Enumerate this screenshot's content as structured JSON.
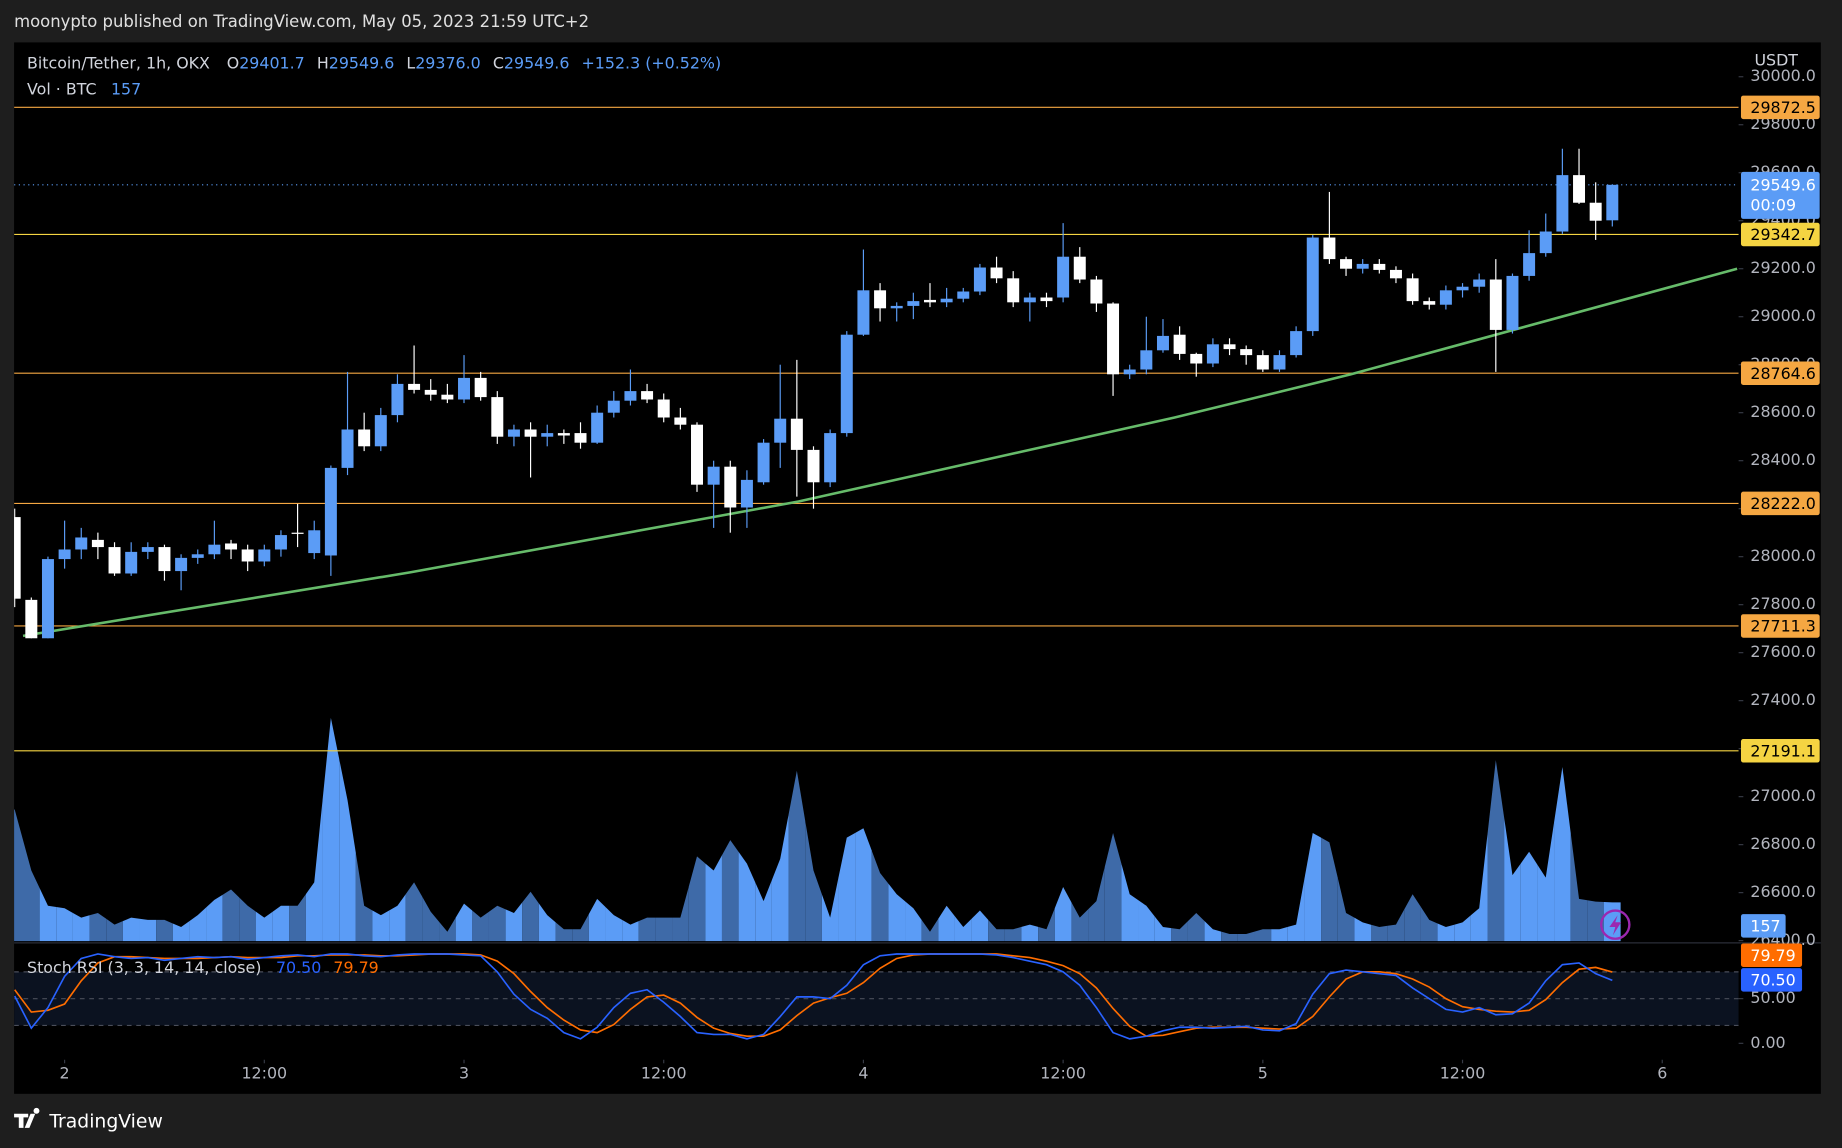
{
  "chart_data": {
    "type": "candlestick",
    "published": "moonypto published on TradingView.com, May 05, 2023 21:59 UTC+2",
    "title": "Bitcoin/Tether, 1h, OKX",
    "ohlc_labels": [
      "O",
      "H",
      "L",
      "C"
    ],
    "ohlc_value_labels": [
      "29401.7",
      "29549.6",
      "29376.0",
      "29549.6"
    ],
    "change_label": "+152.3 (+0.52%)",
    "volume_label": "Vol · BTC",
    "currency": "USDT",
    "countdown": "00:09",
    "footer": "TradingView",
    "up_color": "#5b9cf6",
    "down_color": "#ffffff",
    "volume_up_color": "#5b9cf6",
    "volume_down_color": "#3e6aa8",
    "grid": false,
    "xlim": [
      -3.035,
      100.59
    ],
    "ylim": [
      26398,
      30143
    ],
    "xticks": [
      {
        "value": 0,
        "label": "2"
      },
      {
        "value": 12,
        "label": "12:00"
      },
      {
        "value": 24,
        "label": "3"
      },
      {
        "value": 36,
        "label": "12:00"
      },
      {
        "value": 48,
        "label": "4"
      },
      {
        "value": 60,
        "label": "12:00"
      },
      {
        "value": 72,
        "label": "5"
      },
      {
        "value": 84,
        "label": "12:00"
      },
      {
        "value": 96,
        "label": "6"
      }
    ],
    "yticks": [
      {
        "value": 26400,
        "label": "26400.0"
      },
      {
        "value": 26600,
        "label": "26600.0"
      },
      {
        "value": 26800,
        "label": "26800.0"
      },
      {
        "value": 27000,
        "label": "27000.0"
      },
      {
        "value": 27200,
        "label": "27200.0"
      },
      {
        "value": 27400,
        "label": "27400.0"
      },
      {
        "value": 27600,
        "label": "27600.0"
      },
      {
        "value": 27800,
        "label": "27800.0"
      },
      {
        "value": 28000,
        "label": "28000.0"
      },
      {
        "value": 28200,
        "label": "28200.0"
      },
      {
        "value": 28400,
        "label": "28400.0"
      },
      {
        "value": 28600,
        "label": "28600.0"
      },
      {
        "value": 28800,
        "label": "28800.0"
      },
      {
        "value": 29000,
        "label": "29000.0"
      },
      {
        "value": 29200,
        "label": "29200.0"
      },
      {
        "value": 29400,
        "label": "29400.0"
      },
      {
        "value": 29600,
        "label": "29600.0"
      },
      {
        "value": 29800,
        "label": "29800.0"
      },
      {
        "value": 30000,
        "label": "30000.0"
      }
    ],
    "x": [
      -3,
      -2,
      -1,
      0,
      1,
      2,
      3,
      4,
      5,
      6,
      7,
      8,
      9,
      10,
      11,
      12,
      13,
      14,
      15,
      16,
      17,
      18,
      19,
      20,
      21,
      22,
      23,
      24,
      25,
      26,
      27,
      28,
      29,
      30,
      31,
      32,
      33,
      34,
      35,
      36,
      37,
      38,
      39,
      40,
      41,
      42,
      43,
      44,
      45,
      46,
      47,
      48,
      49,
      50,
      51,
      52,
      53,
      54,
      55,
      56,
      57,
      58,
      59,
      60,
      61,
      62,
      63,
      64,
      65,
      66,
      67,
      68,
      69,
      70,
      71,
      72,
      73,
      74,
      75,
      76,
      77,
      78,
      79,
      80,
      81,
      82,
      83,
      84,
      85,
      86,
      87,
      88,
      89,
      90,
      91,
      92,
      93
    ],
    "open": [
      28165,
      27820,
      27660,
      27990,
      28030,
      28070,
      28040,
      27930,
      28020,
      28040,
      27940,
      27995,
      28010,
      28055,
      28030,
      27980,
      28030,
      28100,
      28015,
      28005,
      28370,
      28530,
      28460,
      28590,
      28720,
      28695,
      28675,
      28655,
      28745,
      28665,
      28500,
      28530,
      28500,
      28515,
      28515,
      28475,
      28600,
      28650,
      28690,
      28655,
      28580,
      28550,
      28300,
      28375,
      28205,
      28310,
      28475,
      28575,
      28445,
      28310,
      28515,
      28925,
      29110,
      29035,
      29045,
      29070,
      29060,
      29075,
      29105,
      29205,
      29160,
      29060,
      29080,
      29080,
      29250,
      29155,
      29055,
      28760,
      28780,
      28860,
      28925,
      28845,
      28805,
      28885,
      28865,
      28840,
      28780,
      28840,
      28940,
      29330,
      29240,
      29200,
      29220,
      29195,
      29160,
      29065,
      29050,
      29110,
      29125,
      29155,
      28945,
      29170,
      29265,
      29355,
      29590,
      29475,
      29401.7
    ],
    "high": [
      28200,
      27830,
      28000,
      28150,
      28120,
      28100,
      28060,
      28060,
      28060,
      28050,
      28010,
      28030,
      28150,
      28070,
      28050,
      28050,
      28110,
      28220,
      28150,
      28380,
      28770,
      28600,
      28620,
      28760,
      28880,
      28740,
      28720,
      28840,
      28770,
      28690,
      28550,
      28560,
      28550,
      28530,
      28560,
      28630,
      28690,
      28780,
      28720,
      28680,
      28620,
      28560,
      28400,
      28400,
      28360,
      28490,
      28800,
      28820,
      28460,
      28530,
      28940,
      29280,
      29140,
      29060,
      29100,
      29140,
      29120,
      29120,
      29220,
      29250,
      29190,
      29100,
      29100,
      29390,
      29290,
      29170,
      29060,
      28800,
      29000,
      28990,
      28960,
      28850,
      28910,
      28910,
      28880,
      28860,
      28860,
      28960,
      29340,
      29520,
      29250,
      29240,
      29240,
      29210,
      29180,
      29080,
      29130,
      29140,
      29180,
      29240,
      29180,
      29360,
      29430,
      29700,
      29700,
      29560,
      29549.6
    ],
    "low": [
      27790,
      27660,
      27660,
      27950,
      27990,
      27990,
      27920,
      27920,
      27990,
      27900,
      27860,
      27970,
      27990,
      27990,
      27940,
      27960,
      28000,
      28040,
      27990,
      27920,
      28340,
      28440,
      28440,
      28560,
      28680,
      28650,
      28640,
      28640,
      28650,
      28470,
      28460,
      28330,
      28460,
      28470,
      28450,
      28470,
      28580,
      28630,
      28640,
      28560,
      28530,
      28270,
      28120,
      28100,
      28120,
      28300,
      28370,
      28250,
      28200,
      28290,
      28500,
      28920,
      28980,
      28980,
      28990,
      29040,
      29040,
      29060,
      29090,
      29140,
      29040,
      28980,
      29040,
      29060,
      29140,
      29020,
      28670,
      28740,
      28760,
      28850,
      28820,
      28750,
      28790,
      28840,
      28800,
      28770,
      28770,
      28830,
      28920,
      29220,
      29170,
      29180,
      29180,
      29140,
      29050,
      29030,
      29030,
      29080,
      29100,
      28770,
      28930,
      29150,
      29250,
      29345,
      29470,
      29320,
      29376
    ],
    "close": [
      27825,
      27660,
      27990,
      28030,
      28080,
      28040,
      27930,
      28020,
      28040,
      27940,
      27995,
      28010,
      28050,
      28030,
      27980,
      28030,
      28090,
      28095,
      28110,
      28370,
      28530,
      28460,
      28590,
      28720,
      28695,
      28675,
      28655,
      28745,
      28665,
      28500,
      28530,
      28500,
      28515,
      28505,
      28475,
      28600,
      28650,
      28690,
      28655,
      28580,
      28550,
      28300,
      28375,
      28205,
      28320,
      28475,
      28575,
      28445,
      28310,
      28515,
      28925,
      29110,
      29035,
      29045,
      29065,
      29060,
      29075,
      29105,
      29205,
      29160,
      29060,
      29080,
      29065,
      29250,
      29155,
      29055,
      28760,
      28780,
      28860,
      28920,
      28845,
      28805,
      28885,
      28865,
      28840,
      28780,
      28840,
      28940,
      29330,
      29240,
      29200,
      29220,
      29195,
      29160,
      29065,
      29050,
      29110,
      29125,
      29155,
      28945,
      29170,
      29265,
      29355,
      29590,
      29475,
      29400,
      29549.6
    ],
    "volume": [
      533,
      286,
      143,
      133,
      95,
      114,
      67,
      95,
      86,
      86,
      57,
      105,
      167,
      209,
      143,
      95,
      143,
      143,
      238,
      904,
      571,
      143,
      105,
      143,
      238,
      119,
      38,
      152,
      95,
      143,
      114,
      200,
      105,
      48,
      48,
      171,
      105,
      67,
      95,
      95,
      95,
      343,
      286,
      409,
      314,
      162,
      333,
      690,
      286,
      95,
      419,
      457,
      276,
      190,
      133,
      38,
      143,
      57,
      124,
      48,
      48,
      67,
      48,
      219,
      95,
      162,
      438,
      190,
      143,
      57,
      48,
      114,
      48,
      29,
      29,
      48,
      48,
      67,
      438,
      400,
      114,
      76,
      57,
      67,
      190,
      86,
      57,
      76,
      133,
      733,
      267,
      362,
      257,
      705,
      171,
      160,
      157
    ],
    "levels": {
      "values": [
        29872.5,
        29342.7,
        28764.6,
        28222.0,
        27711.3,
        27191.1
      ],
      "value_labels": [
        "29872.5",
        "29342.7",
        "28764.6",
        "28222.0",
        "27711.3",
        "27191.1"
      ],
      "colors": [
        "#f5a742",
        "#f5d442",
        "#f5a742",
        "#f5a742",
        "#f5a742",
        "#f5d442"
      ]
    },
    "trendline": {
      "color": "#66bb6a",
      "x": [
        -2.5,
        20.8,
        44.1,
        66.7,
        77.3,
        100.5
      ],
      "y": [
        27670,
        27935,
        28230,
        28580,
        28760,
        29200
      ]
    },
    "stoch": {
      "name": "Stoch RSI (3, 3, 14, 14, close)",
      "ylim": [
        -18.4,
        111.8
      ],
      "yticks": [
        {
          "value": 0,
          "label": "0.00"
        },
        {
          "value": 50,
          "label": "50.00"
        }
      ],
      "hlines": [
        80,
        50,
        20
      ],
      "series": [
        {
          "color": "#2962ff",
          "value_label": "70.50",
          "values": [
            53,
            17,
            40,
            75,
            95,
            100,
            97,
            95,
            96,
            93,
            95,
            97,
            96,
            97,
            94,
            96,
            98,
            99,
            97,
            100,
            100,
            98,
            97,
            99,
            100,
            100,
            100,
            99,
            98,
            80,
            55,
            38,
            28,
            12,
            5,
            18,
            40,
            56,
            60,
            46,
            30,
            12,
            10,
            10,
            5,
            10,
            30,
            52,
            52,
            50,
            65,
            88,
            98,
            100,
            100,
            100,
            100,
            100,
            100,
            99,
            96,
            92,
            88,
            80,
            65,
            40,
            12,
            5,
            8,
            14,
            18,
            18,
            17,
            18,
            19,
            15,
            14,
            22,
            55,
            78,
            82,
            80,
            78,
            76,
            62,
            50,
            38,
            35,
            40,
            32,
            33,
            45,
            70,
            88,
            90,
            78,
            70.5
          ]
        },
        {
          "color": "#ff6d00",
          "value_label": "79.79",
          "values": [
            60,
            35,
            37,
            44,
            70,
            90,
            97,
            97,
            96,
            95,
            95,
            95,
            96,
            97,
            96,
            96,
            96,
            98,
            98,
            99,
            99,
            99,
            98,
            98,
            99,
            100,
            100,
            100,
            99,
            92,
            78,
            58,
            40,
            26,
            15,
            12,
            21,
            38,
            52,
            54,
            45,
            29,
            17,
            11,
            8,
            8,
            15,
            31,
            45,
            51,
            56,
            68,
            84,
            95,
            99,
            100,
            100,
            100,
            100,
            100,
            98,
            96,
            92,
            87,
            78,
            62,
            39,
            19,
            8,
            9,
            13,
            17,
            18,
            18,
            18,
            17,
            16,
            17,
            30,
            52,
            72,
            80,
            80,
            78,
            72,
            63,
            50,
            41,
            38,
            36,
            35,
            37,
            49,
            68,
            83,
            85,
            79.79
          ]
        }
      ]
    }
  }
}
